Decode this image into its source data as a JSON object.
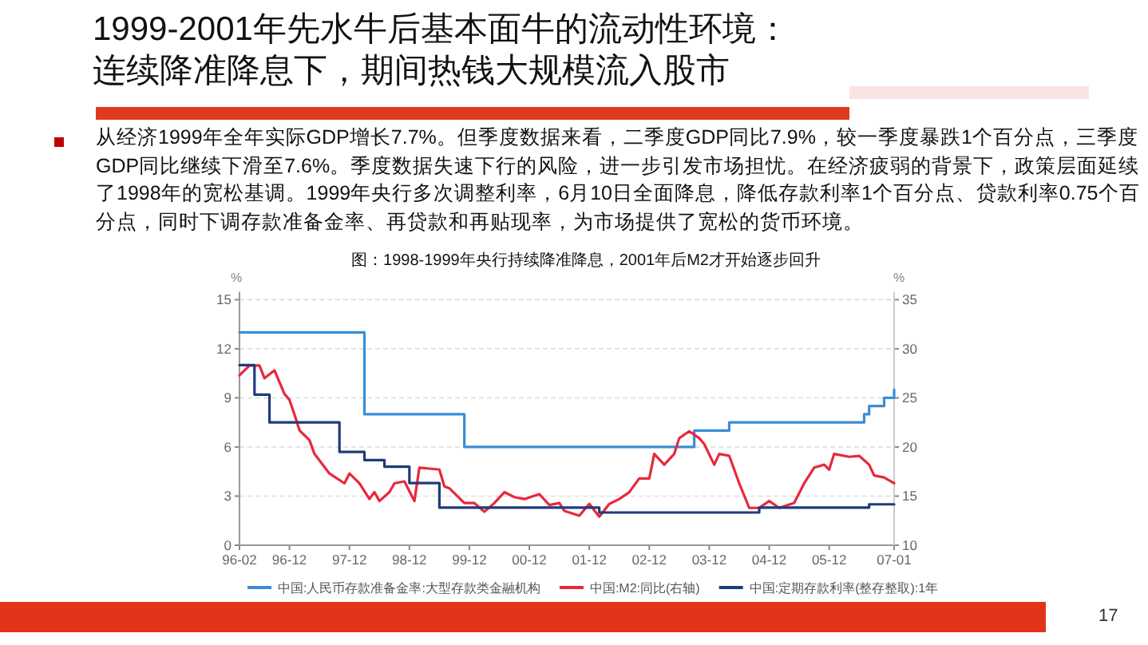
{
  "chart_data": {
    "type": "line",
    "title": "1999-2001年先水牛后基本面牛的流动性环境：连续降准降息下，期间热钱大规模流入股市",
    "subtitle": "从经济1999年全年实际GDP增长7.7%。但季度数据来看，二季度GDP同比7.9%，较一季度暴跌1个百分点，三季度GDP同比继续下滑至7.6%。季度数据失速下行的风险，进一步引发市场担忧。在经济疲弱的背景下，政策层面延续了1998年的宽松基调。1999年央行多次调整利率，6月10日全面降息，降低存款利率1个百分点、贷款利率0.75个百分点，同时下调存款准备金率、再贷款和再贴现率，为市场提供了宽松的货币环境。",
    "annotations": [
      "图：1998-1999年央行持续降准降息，2001年后M2才开始逐步回升",
      "17"
    ],
    "ylabel": "%",
    "y2label": "%",
    "xlim": [
      "1996-02",
      "2007-01"
    ],
    "xticks": [
      {
        "value": "1996-02",
        "label": "96-02"
      },
      {
        "value": "1996-12",
        "label": "96-12"
      },
      {
        "value": "1997-12",
        "label": "97-12"
      },
      {
        "value": "1998-12",
        "label": "98-12"
      },
      {
        "value": "1999-12",
        "label": "99-12"
      },
      {
        "value": "2000-12",
        "label": "00-12"
      },
      {
        "value": "2001-12",
        "label": "01-12"
      },
      {
        "value": "2002-12",
        "label": "02-12"
      },
      {
        "value": "2003-12",
        "label": "03-12"
      },
      {
        "value": "2004-12",
        "label": "04-12"
      },
      {
        "value": "2005-12",
        "label": "05-12"
      },
      {
        "value": "2007-01",
        "label": "07-01"
      }
    ],
    "ylim": [
      0,
      15
    ],
    "yticks": [
      0,
      3,
      6,
      9,
      12,
      15
    ],
    "y2lim": [
      10,
      35
    ],
    "y2ticks": [
      10,
      15,
      20,
      25,
      30,
      35
    ],
    "grid": "y",
    "legend": "bottom",
    "series": [
      {
        "name": "中国:人民币存款准备金率:大型存款类金融机构",
        "type": "step",
        "color": "#3b8ed4",
        "x": [
          "1996-02",
          "1998-03",
          "1999-11",
          "2003-09",
          "2004-04",
          "2006-07",
          "2006-08",
          "2006-11",
          "2007-01"
        ],
        "values": [
          13,
          8,
          6,
          7,
          7.5,
          8,
          8.5,
          9,
          9.5
        ]
      },
      {
        "name": "中国:M2:同比(右轴)",
        "type": "line",
        "axis": "y2",
        "color": "#e8283c",
        "x": [
          "1996-02",
          "1996-04",
          "1996-06",
          "1996-07",
          "1996-09",
          "1996-11",
          "1996-12",
          "1997-01",
          "1997-02",
          "1997-04",
          "1997-05",
          "1997-08",
          "1997-11",
          "1997-12",
          "1998-02",
          "1998-04",
          "1998-05",
          "1998-06",
          "1998-08",
          "1998-09",
          "1998-11",
          "1999-01",
          "1999-02",
          "1999-04",
          "1999-06",
          "1999-07",
          "1999-08",
          "1999-11",
          "2000-01",
          "2000-03",
          "2000-05",
          "2000-07",
          "2000-09",
          "2000-11",
          "2001-02",
          "2001-04",
          "2001-06",
          "2001-07",
          "2001-10",
          "2001-12",
          "2002-02",
          "2002-04",
          "2002-06",
          "2002-08",
          "2002-10",
          "2002-12",
          "2003-01",
          "2003-03",
          "2003-05",
          "2003-06",
          "2003-08",
          "2003-10",
          "2003-11",
          "2004-01",
          "2004-02",
          "2004-04",
          "2004-06",
          "2004-08",
          "2004-10",
          "2004-12",
          "2005-02",
          "2005-05",
          "2005-07",
          "2005-09",
          "2005-11",
          "2005-12",
          "2006-01",
          "2006-04",
          "2006-06",
          "2006-08",
          "2006-09",
          "2006-11",
          "2007-01"
        ],
        "values": [
          27.3,
          28.3,
          28.3,
          27.0,
          27.8,
          25.4,
          24.8,
          23.3,
          21.7,
          20.7,
          19.3,
          17.3,
          16.3,
          17.3,
          16.3,
          14.7,
          15.4,
          14.5,
          15.4,
          16.3,
          16.5,
          14.5,
          17.9,
          17.8,
          17.7,
          16.0,
          15.8,
          14.3,
          14.3,
          13.4,
          14.3,
          15.4,
          14.9,
          14.7,
          15.2,
          14.1,
          14.3,
          13.5,
          13.0,
          14.2,
          12.9,
          14.2,
          14.7,
          15.4,
          16.8,
          16.8,
          19.3,
          18.2,
          19.3,
          20.9,
          21.6,
          20.9,
          20.3,
          18.2,
          19.3,
          19.1,
          16.3,
          13.8,
          13.8,
          14.5,
          13.8,
          14.3,
          16.3,
          17.9,
          18.2,
          17.7,
          19.3,
          19.0,
          19.1,
          18.2,
          17.1,
          16.9,
          16.3
        ]
      },
      {
        "name": "中国:定期存款利率(整存整取):1年",
        "type": "step",
        "color": "#1f3b7a",
        "x": [
          "1996-02",
          "1996-05",
          "1996-08",
          "1997-10",
          "1998-03",
          "1998-07",
          "1998-12",
          "1999-06",
          "2002-02",
          "2004-10",
          "2006-08",
          "2007-01"
        ],
        "values": [
          11.0,
          9.2,
          7.5,
          5.7,
          5.2,
          4.8,
          3.8,
          2.3,
          2.0,
          2.3,
          2.5,
          2.5
        ]
      }
    ]
  }
}
